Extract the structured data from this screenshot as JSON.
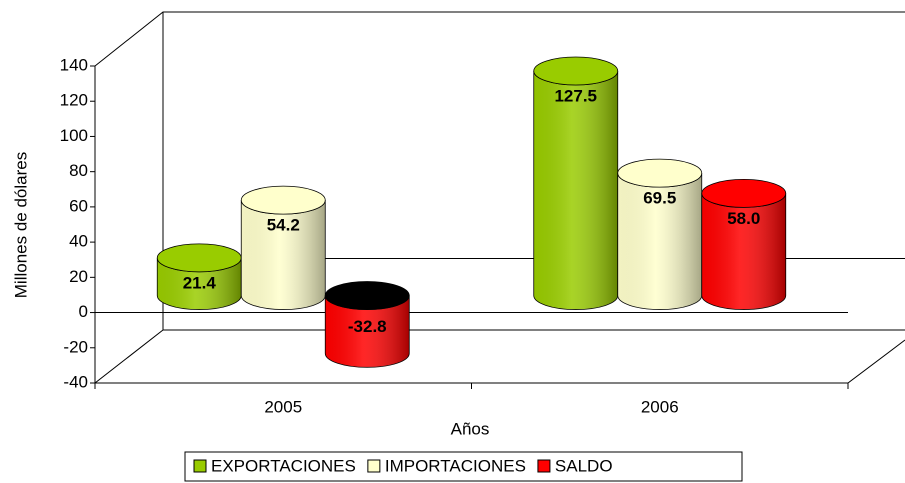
{
  "chart_data": {
    "type": "bar3d",
    "categories": [
      "2005",
      "2006"
    ],
    "series": [
      {
        "name": "EXPORTACIONES",
        "color": "#99cc00",
        "values": [
          21.4,
          127.5
        ],
        "value_labels": [
          "21.4",
          "127.5"
        ]
      },
      {
        "name": "IMPORTACIONES",
        "color": "#ffffcc",
        "values": [
          54.2,
          69.5
        ],
        "value_labels": [
          "54.2",
          "69.5"
        ]
      },
      {
        "name": "SALDO",
        "color": "#ff0000",
        "values": [
          -32.8,
          58.0
        ],
        "value_labels": [
          "-32.8",
          "58.0"
        ]
      }
    ],
    "x_label": "Años",
    "y_label": "Millones de dólares",
    "ylim": [
      -40,
      140
    ],
    "yticks": [
      -40,
      -20,
      0,
      20,
      40,
      60,
      80,
      100,
      120,
      140
    ],
    "legend": "bottom"
  }
}
